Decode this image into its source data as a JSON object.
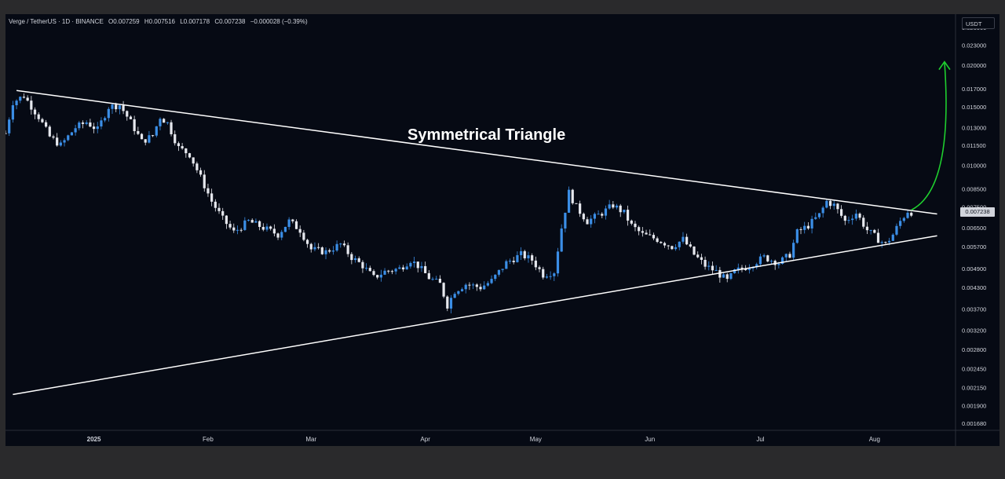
{
  "header": {
    "symbol": "Verge / TetherUS · 1D · BINANCE",
    "open": "O0.007259",
    "high": "H0.007516",
    "low": "L0.007178",
    "close": "C0.007238",
    "change": "−0.000028 (−0.39%)"
  },
  "currency": "USDT",
  "last_price_label": "0.007238",
  "annotation": "Symmetrical Triangle",
  "colors": {
    "background": "#060a14",
    "candle_up": "#3b8ee6",
    "candle_down": "#e6e8ee",
    "trendline": "#ffffff",
    "arrow": "#1fcf2f",
    "axis_text": "#d1d4dc"
  },
  "chart_data": {
    "type": "candlestick",
    "scale": "log",
    "ylim": [
      0.0016,
      0.0285
    ],
    "y_ticks": [
      "0.026000",
      "0.023000",
      "0.020000",
      "0.017000",
      "0.015000",
      "0.013000",
      "0.011500",
      "0.010000",
      "0.008500",
      "0.007500",
      "0.006500",
      "0.005700",
      "0.004900",
      "0.004300",
      "0.003700",
      "0.003200",
      "0.002800",
      "0.002450",
      "0.002150",
      "0.001900",
      "0.001680"
    ],
    "x_range": [
      "2024-12-08",
      "2025-08-23"
    ],
    "x_ticks": [
      {
        "label": "2025",
        "date": "2025-01-01"
      },
      {
        "label": "Feb",
        "date": "2025-02-01"
      },
      {
        "label": "Mar",
        "date": "2025-03-01"
      },
      {
        "label": "Apr",
        "date": "2025-04-01"
      },
      {
        "label": "May",
        "date": "2025-05-01"
      },
      {
        "label": "Jun",
        "date": "2025-06-01"
      },
      {
        "label": "Jul",
        "date": "2025-07-01"
      },
      {
        "label": "Aug",
        "date": "2025-08-01"
      }
    ],
    "close_path": [
      [
        "2024-12-08",
        0.0125
      ],
      [
        "2024-12-10",
        0.0155
      ],
      [
        "2024-12-13",
        0.0162
      ],
      [
        "2024-12-17",
        0.014
      ],
      [
        "2024-12-20",
        0.0122
      ],
      [
        "2024-12-23",
        0.0115
      ],
      [
        "2024-12-27",
        0.013
      ],
      [
        "2024-12-30",
        0.0135
      ],
      [
        "2025-01-02",
        0.0128
      ],
      [
        "2025-01-05",
        0.015
      ],
      [
        "2025-01-08",
        0.0152
      ],
      [
        "2025-01-11",
        0.0135
      ],
      [
        "2025-01-14",
        0.0118
      ],
      [
        "2025-01-17",
        0.0123
      ],
      [
        "2025-01-19",
        0.014
      ],
      [
        "2025-01-21",
        0.0134
      ],
      [
        "2025-01-24",
        0.0113
      ],
      [
        "2025-01-27",
        0.0108
      ],
      [
        "2025-01-30",
        0.0092
      ],
      [
        "2025-02-02",
        0.0078
      ],
      [
        "2025-02-05",
        0.0069
      ],
      [
        "2025-02-08",
        0.0063
      ],
      [
        "2025-02-12",
        0.0068
      ],
      [
        "2025-02-16",
        0.0065
      ],
      [
        "2025-02-20",
        0.0062
      ],
      [
        "2025-02-23",
        0.0068
      ],
      [
        "2025-02-26",
        0.0064
      ],
      [
        "2025-03-01",
        0.0056
      ],
      [
        "2025-03-05",
        0.0055
      ],
      [
        "2025-03-09",
        0.0058
      ],
      [
        "2025-03-12",
        0.0053
      ],
      [
        "2025-03-15",
        0.005
      ],
      [
        "2025-03-18",
        0.0046
      ],
      [
        "2025-03-21",
        0.0048
      ],
      [
        "2025-03-25",
        0.0049
      ],
      [
        "2025-03-28",
        0.0052
      ],
      [
        "2025-03-30",
        0.005
      ],
      [
        "2025-04-02",
        0.0046
      ],
      [
        "2025-04-05",
        0.0044
      ],
      [
        "2025-04-07",
        0.0038
      ],
      [
        "2025-04-09",
        0.0042
      ],
      [
        "2025-04-12",
        0.0044
      ],
      [
        "2025-04-16",
        0.0043
      ],
      [
        "2025-04-19",
        0.0045
      ],
      [
        "2025-04-23",
        0.0051
      ],
      [
        "2025-04-27",
        0.0054
      ],
      [
        "2025-04-30",
        0.0052
      ],
      [
        "2025-05-03",
        0.0047
      ],
      [
        "2025-05-06",
        0.0048
      ],
      [
        "2025-05-08",
        0.0065
      ],
      [
        "2025-05-10",
        0.0083
      ],
      [
        "2025-05-12",
        0.0075
      ],
      [
        "2025-05-15",
        0.0068
      ],
      [
        "2025-05-19",
        0.0072
      ],
      [
        "2025-05-22",
        0.0076
      ],
      [
        "2025-05-25",
        0.0072
      ],
      [
        "2025-05-27",
        0.0066
      ],
      [
        "2025-05-30",
        0.0062
      ],
      [
        "2025-06-03",
        0.006
      ],
      [
        "2025-06-07",
        0.0057
      ],
      [
        "2025-06-10",
        0.006
      ],
      [
        "2025-06-13",
        0.0054
      ],
      [
        "2025-06-16",
        0.005
      ],
      [
        "2025-06-19",
        0.0048
      ],
      [
        "2025-06-22",
        0.0045
      ],
      [
        "2025-06-24",
        0.0048
      ],
      [
        "2025-06-28",
        0.005
      ],
      [
        "2025-07-02",
        0.0053
      ],
      [
        "2025-07-06",
        0.0051
      ],
      [
        "2025-07-09",
        0.0054
      ],
      [
        "2025-07-11",
        0.0063
      ],
      [
        "2025-07-14",
        0.0066
      ],
      [
        "2025-07-17",
        0.0071
      ],
      [
        "2025-07-19",
        0.0078
      ],
      [
        "2025-07-21",
        0.0076
      ],
      [
        "2025-07-24",
        0.0068
      ],
      [
        "2025-07-27",
        0.0072
      ],
      [
        "2025-07-30",
        0.0064
      ],
      [
        "2025-08-02",
        0.006
      ],
      [
        "2025-08-04",
        0.0058
      ],
      [
        "2025-08-06",
        0.0062
      ],
      [
        "2025-08-08",
        0.0068
      ],
      [
        "2025-08-10",
        0.0073
      ],
      [
        "2025-08-11",
        0.007238
      ]
    ],
    "upper_trendline": [
      [
        "2024-12-11",
        0.0168
      ],
      [
        "2025-08-18",
        0.00715
      ]
    ],
    "lower_trendline": [
      [
        "2024-12-10",
        0.00205
      ],
      [
        "2025-08-18",
        0.00615
      ]
    ],
    "projection_arrow": [
      [
        "2025-08-11",
        0.00735
      ],
      [
        "2025-08-15",
        0.0095
      ],
      [
        "2025-08-20",
        0.0205
      ]
    ]
  }
}
